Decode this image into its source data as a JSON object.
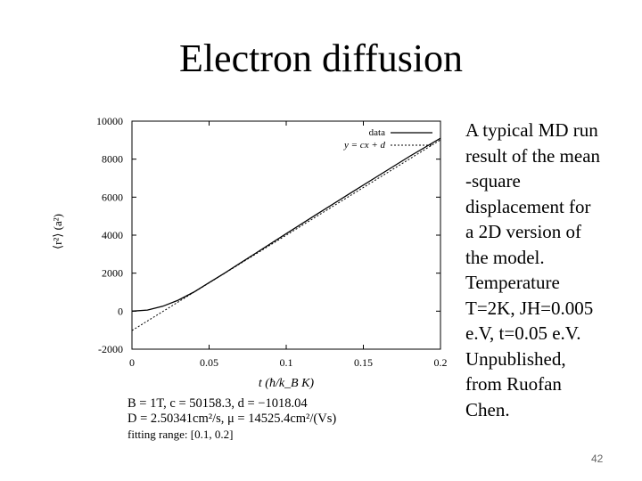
{
  "slide": {
    "title": "Electron diffusion",
    "page_number": "42"
  },
  "caption_lines": [
    "A typical MD run",
    "result of the mean",
    "-square",
    "displacement for",
    "a 2D version of",
    "the model.",
    "Temperature",
    "T=2K, JH=0.005",
    "e.V, t=0.05 e.V.",
    "Unpublished,",
    "from Ruofan",
    "Chen."
  ],
  "chart_data": {
    "type": "line",
    "xlabel": "t (ħ/k_B K)",
    "ylabel": "⟨r²⟩ (a²)",
    "xlim": [
      0,
      0.2
    ],
    "ylim": [
      -2000,
      10000
    ],
    "x_ticks": [
      "0",
      "0.05",
      "0.1",
      "0.15",
      "0.2"
    ],
    "y_ticks": [
      "-2000",
      "0",
      "2000",
      "4000",
      "6000",
      "8000",
      "10000"
    ],
    "legend_position": "top-right",
    "series": [
      {
        "name": "data",
        "style": "solid",
        "x": [
          0,
          0.01,
          0.02,
          0.03,
          0.04,
          0.05,
          0.06,
          0.07,
          0.08,
          0.1,
          0.12,
          0.14,
          0.16,
          0.18,
          0.2
        ],
        "y": [
          0,
          60,
          260,
          580,
          1000,
          1500,
          2000,
          2520,
          3040,
          4080,
          5110,
          6130,
          7140,
          8150,
          9100
        ]
      },
      {
        "name": "y = cx + d",
        "style": "dashed",
        "x": [
          0,
          0.2
        ],
        "y": [
          -1018.04,
          9013.6
        ]
      }
    ],
    "annotations": [
      "B = 1T,   c = 50158.3,   d = −1018.04",
      "D = 2.50341cm²/s,   μ = 14525.4cm²/(Vs)",
      "fitting range: [0.1, 0.2]"
    ]
  }
}
